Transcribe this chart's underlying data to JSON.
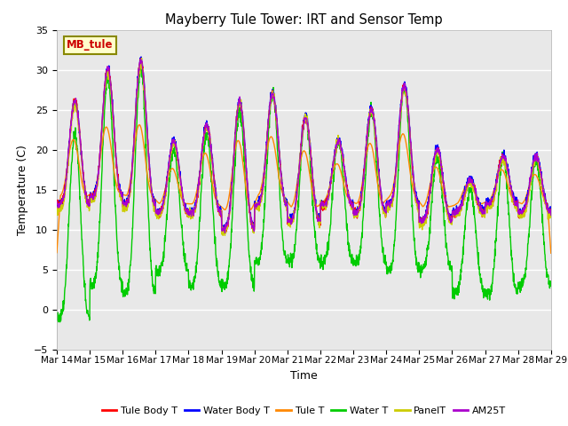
{
  "title": "Mayberry Tule Tower: IRT and Sensor Temp",
  "xlabel": "Time",
  "ylabel": "Temperature (C)",
  "ylim": [
    -5,
    35
  ],
  "yticks": [
    -5,
    0,
    5,
    10,
    15,
    20,
    25,
    30,
    35
  ],
  "xlim": [
    0,
    15
  ],
  "x_tick_labels": [
    "Mar 14",
    "Mar 15",
    "Mar 16",
    "Mar 17",
    "Mar 18",
    "Mar 19",
    "Mar 20",
    "Mar 21",
    "Mar 22",
    "Mar 23",
    "Mar 24",
    "Mar 25",
    "Mar 26",
    "Mar 27",
    "Mar 28",
    "Mar 29"
  ],
  "x_tick_positions": [
    0,
    1,
    2,
    3,
    4,
    5,
    6,
    7,
    8,
    9,
    10,
    11,
    12,
    13,
    14,
    15
  ],
  "legend_entries": [
    "Tule Body T",
    "Water Body T",
    "Tule T",
    "Water T",
    "PanelT",
    "AM25T"
  ],
  "line_colors": [
    "#ff0000",
    "#0000ff",
    "#ff8800",
    "#00cc00",
    "#cccc00",
    "#aa00cc"
  ],
  "background_color": "#e8e8e8",
  "figure_color": "#ffffff",
  "textbox_label": "MB_tule",
  "textbox_facecolor": "#ffffcc",
  "textbox_edgecolor": "#888800",
  "textbox_textcolor": "#cc0000",
  "day_peaks_tb": [
    26,
    30,
    31,
    21,
    23,
    26,
    27,
    24,
    21,
    25,
    28,
    20,
    16,
    19,
    19
  ],
  "day_mins_tb": [
    13,
    14,
    13,
    12,
    12,
    10,
    13,
    11,
    13,
    12,
    13,
    11,
    12,
    13,
    12
  ],
  "day_peaks_orange": [
    19,
    19,
    19,
    16,
    18,
    19,
    19,
    18,
    17,
    19,
    19,
    17,
    16,
    17,
    16
  ],
  "day_mins_orange": [
    15,
    15,
    15,
    14,
    14,
    14,
    15,
    14,
    14,
    14,
    15,
    14,
    14,
    14,
    14
  ],
  "day_peaks_water": [
    22,
    29,
    30,
    20,
    22,
    25,
    27,
    24,
    21,
    25,
    28,
    19,
    15,
    19,
    19
  ],
  "day_mins_water": [
    -1,
    3,
    2,
    5,
    3,
    3,
    6,
    6,
    6,
    6,
    5,
    5,
    2,
    2,
    3
  ]
}
